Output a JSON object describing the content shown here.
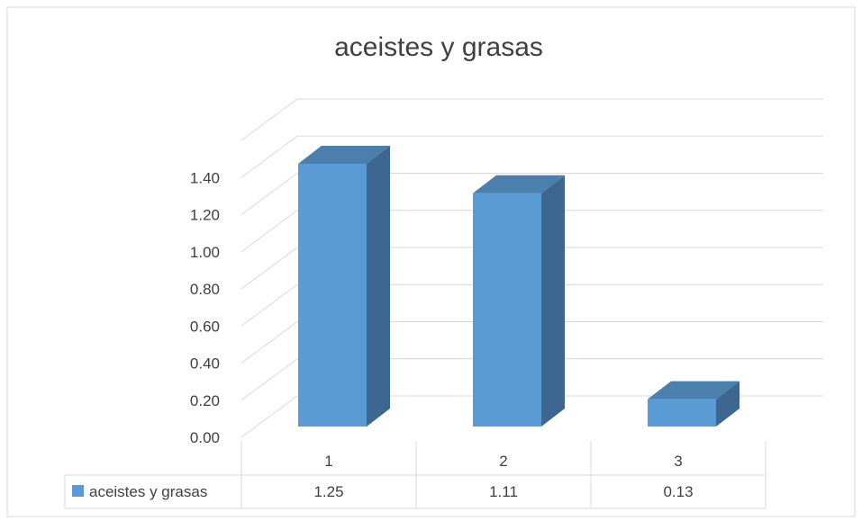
{
  "chart_data": {
    "type": "bar",
    "title": "aceistes y grasas",
    "categories": [
      "1",
      "2",
      "3"
    ],
    "series": [
      {
        "name": "aceistes y grasas",
        "values": [
          1.25,
          1.11,
          0.13
        ]
      }
    ],
    "value_labels": [
      "1.25",
      "1.11",
      "0.13"
    ],
    "y_ticks": [
      "0.00",
      "0.20",
      "0.40",
      "0.60",
      "0.80",
      "1.00",
      "1.20",
      "1.40"
    ],
    "ylim": [
      0,
      1.6
    ],
    "grid": true,
    "legend": "data-table",
    "colors": {
      "front": "#5b9bd5",
      "top": "#4a7fae",
      "side": "#3d6791",
      "grid": "#d9d9d9",
      "text": "#404040"
    }
  }
}
